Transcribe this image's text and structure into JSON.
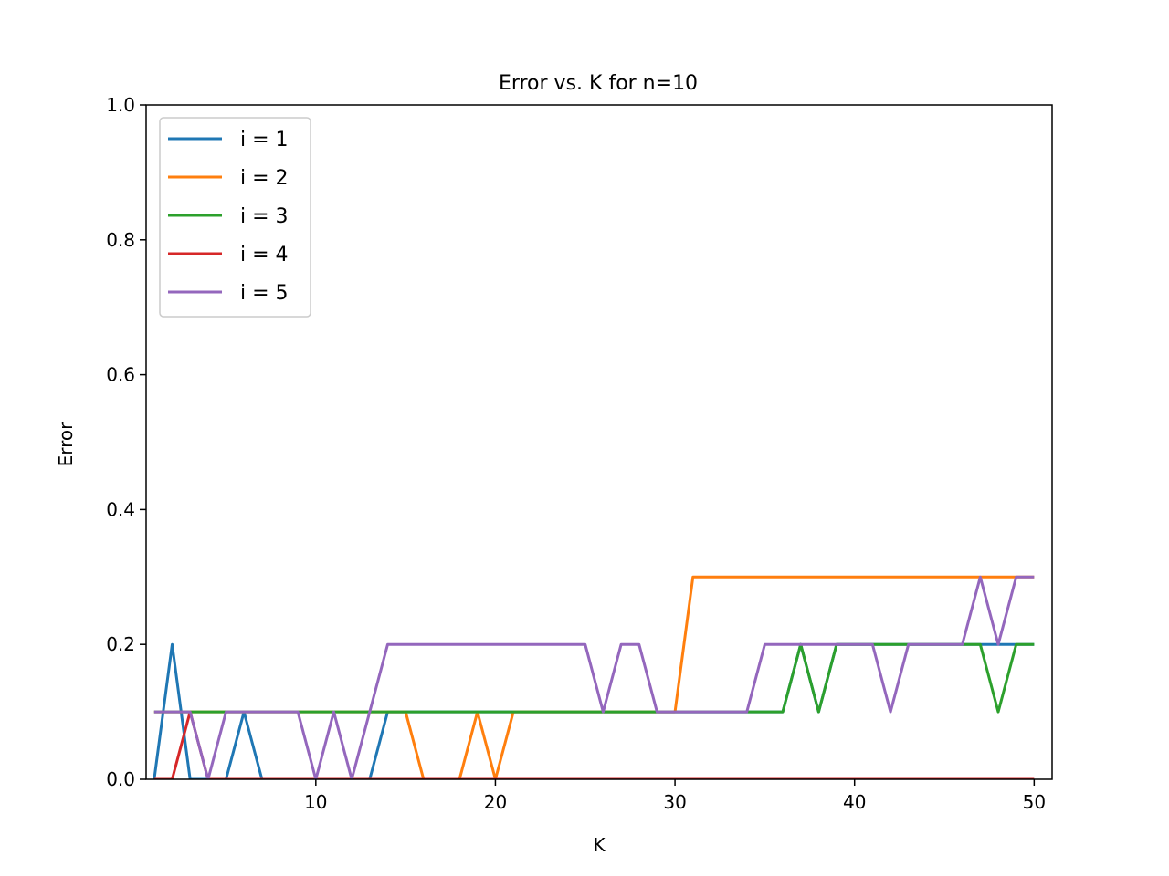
{
  "chart_data": {
    "type": "line",
    "title": "Error vs. K for n=10",
    "xlabel": "K",
    "ylabel": "Error",
    "xlim": [
      0.55,
      51
    ],
    "ylim": [
      0,
      1
    ],
    "xticks": [
      10,
      20,
      30,
      40,
      50
    ],
    "xtick_labels": [
      "10",
      "20",
      "30",
      "40",
      "50"
    ],
    "yticks": [
      0,
      0.2,
      0.4,
      0.6,
      0.8,
      1.0
    ],
    "ytick_labels": [
      "0.0",
      "0.2",
      "0.4",
      "0.6",
      "0.8",
      "1.0"
    ],
    "grid": false,
    "legend_position": "top-left",
    "x": [
      1,
      2,
      3,
      4,
      5,
      6,
      7,
      8,
      9,
      10,
      11,
      12,
      13,
      14,
      15,
      16,
      17,
      18,
      19,
      20,
      21,
      22,
      23,
      24,
      25,
      26,
      27,
      28,
      29,
      30,
      31,
      32,
      33,
      34,
      35,
      36,
      37,
      38,
      39,
      40,
      41,
      42,
      43,
      44,
      45,
      46,
      47,
      48,
      49,
      50
    ],
    "series": [
      {
        "name": "i = 1",
        "color": "#1f77b4",
        "values": [
          0,
          0.2,
          0,
          0,
          0,
          0.1,
          0,
          0,
          0,
          0,
          0,
          0,
          0,
          0.1,
          0.1,
          0.1,
          0.1,
          0.1,
          0.1,
          0.1,
          0.1,
          0.1,
          0.1,
          0.1,
          0.1,
          0.1,
          0.1,
          0.1,
          0.1,
          0.1,
          0.1,
          0.1,
          0.1,
          0.1,
          0.1,
          0.1,
          0.2,
          0.1,
          0.2,
          0.2,
          0.2,
          0.2,
          0.2,
          0.2,
          0.2,
          0.2,
          0.2,
          0.2,
          0.2,
          0.2
        ]
      },
      {
        "name": "i = 2",
        "color": "#ff7f0e",
        "values": [
          0.1,
          0.1,
          0.1,
          0.1,
          0.1,
          0.1,
          0.1,
          0.1,
          0.1,
          0.1,
          0.1,
          0.1,
          0.1,
          0.1,
          0.1,
          0,
          0,
          0,
          0.1,
          0,
          0.1,
          0.1,
          0.1,
          0.1,
          0.1,
          0.1,
          0.1,
          0.1,
          0.1,
          0.1,
          0.3,
          0.3,
          0.3,
          0.3,
          0.3,
          0.3,
          0.3,
          0.3,
          0.3,
          0.3,
          0.3,
          0.3,
          0.3,
          0.3,
          0.3,
          0.3,
          0.3,
          0.3,
          0.3,
          0.3
        ]
      },
      {
        "name": "i = 3",
        "color": "#2ca02c",
        "values": [
          0.1,
          0.1,
          0.1,
          0.1,
          0.1,
          0.1,
          0.1,
          0.1,
          0.1,
          0.1,
          0.1,
          0.1,
          0.1,
          0.1,
          0.1,
          0.1,
          0.1,
          0.1,
          0.1,
          0.1,
          0.1,
          0.1,
          0.1,
          0.1,
          0.1,
          0.1,
          0.1,
          0.1,
          0.1,
          0.1,
          0.1,
          0.1,
          0.1,
          0.1,
          0.1,
          0.1,
          0.2,
          0.1,
          0.2,
          0.2,
          0.2,
          0.2,
          0.2,
          0.2,
          0.2,
          0.2,
          0.2,
          0.1,
          0.2,
          0.2
        ]
      },
      {
        "name": "i = 4",
        "color": "#d62728",
        "values": [
          0,
          0,
          0.1,
          0,
          0,
          0,
          0,
          0,
          0,
          0,
          0,
          0,
          0,
          0,
          0,
          0,
          0,
          0,
          0,
          0,
          0,
          0,
          0,
          0,
          0,
          0,
          0,
          0,
          0,
          0,
          0,
          0,
          0,
          0,
          0,
          0,
          0,
          0,
          0,
          0,
          0,
          0,
          0,
          0,
          0,
          0,
          0,
          0,
          0,
          0
        ]
      },
      {
        "name": "i = 5",
        "color": "#9467bd",
        "values": [
          0.1,
          0.1,
          0.1,
          0,
          0.1,
          0.1,
          0.1,
          0.1,
          0.1,
          0,
          0.1,
          0,
          0.1,
          0.2,
          0.2,
          0.2,
          0.2,
          0.2,
          0.2,
          0.2,
          0.2,
          0.2,
          0.2,
          0.2,
          0.2,
          0.1,
          0.2,
          0.2,
          0.1,
          0.1,
          0.1,
          0.1,
          0.1,
          0.1,
          0.2,
          0.2,
          0.2,
          0.2,
          0.2,
          0.2,
          0.2,
          0.1,
          0.2,
          0.2,
          0.2,
          0.2,
          0.3,
          0.2,
          0.3,
          0.3
        ]
      }
    ]
  }
}
